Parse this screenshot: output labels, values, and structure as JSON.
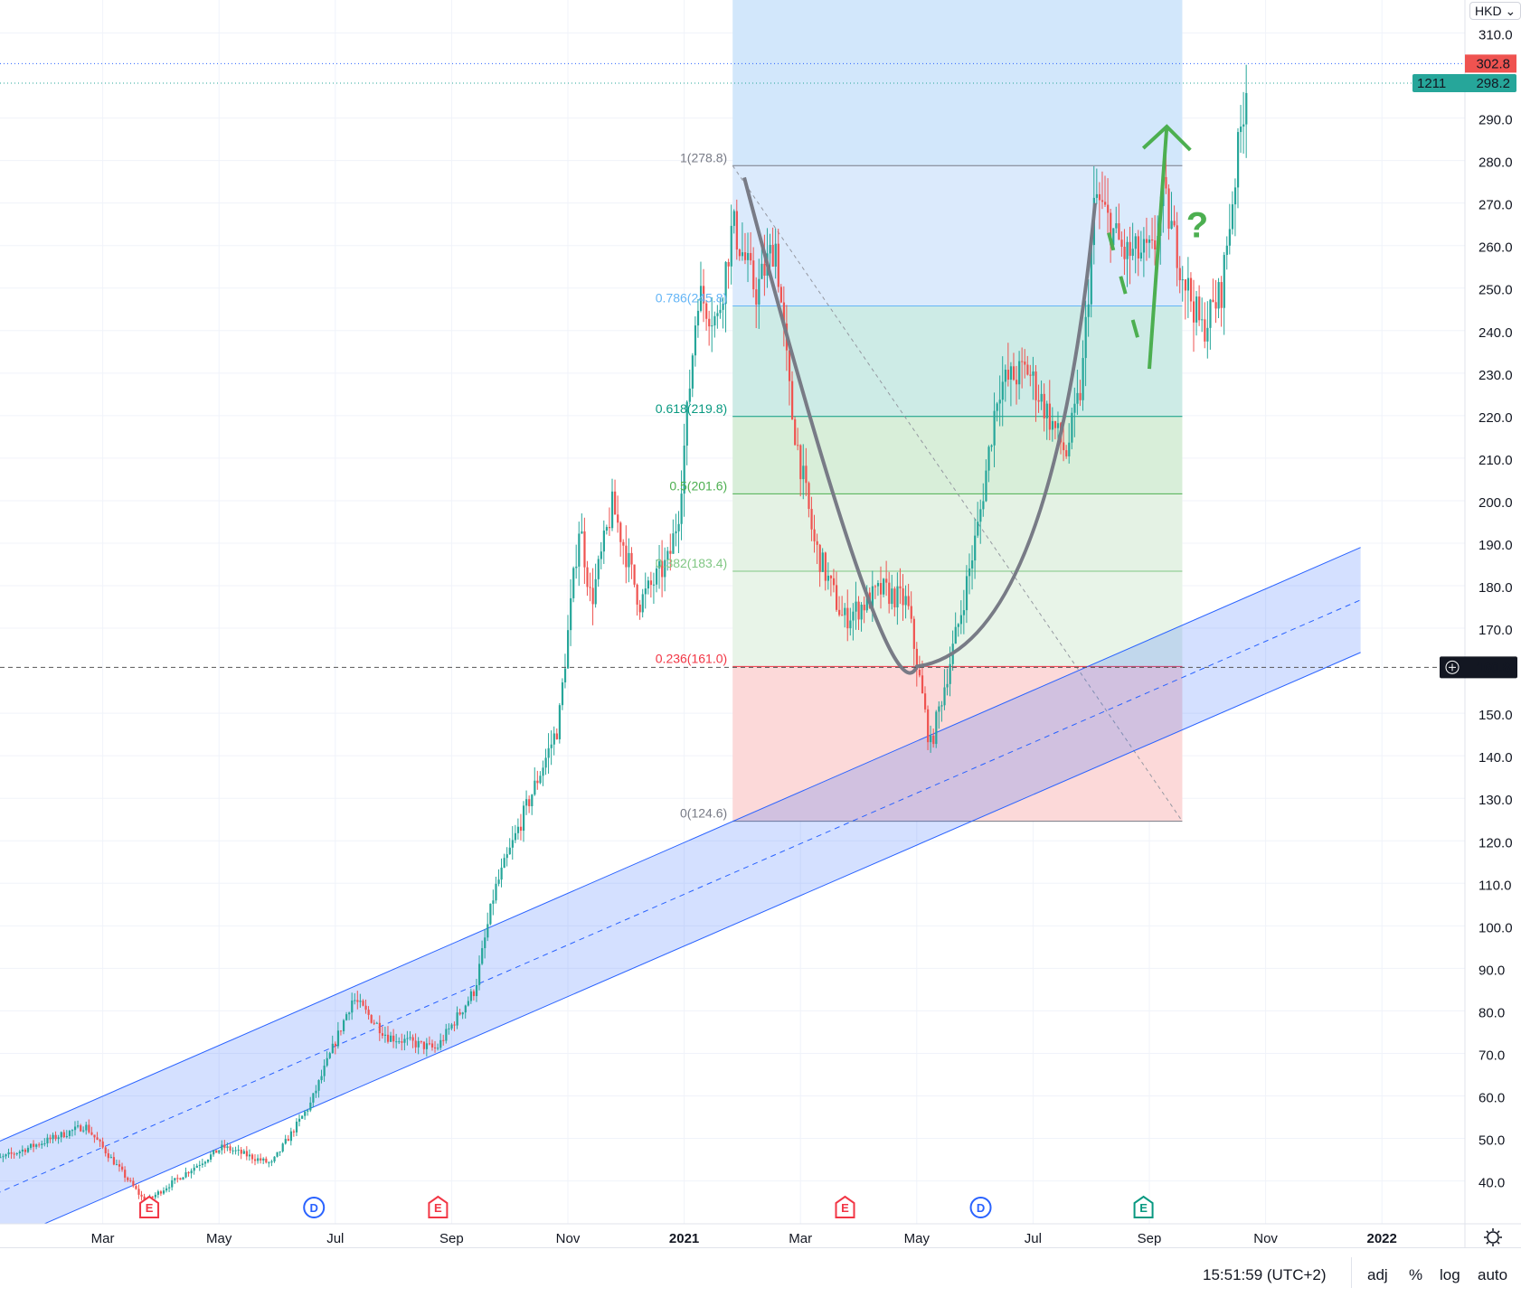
{
  "currency_button": "HKD ⌄",
  "bottom_bar": {
    "time": "15:51:59 (UTC+2)",
    "adj": "adj",
    "percent": "%",
    "log": "log",
    "auto": "auto"
  },
  "settings_icon": "gear-icon",
  "colors": {
    "up": "#26a69a",
    "down": "#ef5350",
    "channel": "#2962ff",
    "cup": "#787b86",
    "annotation": "#4caf50"
  },
  "chart_data": {
    "type": "candlestick",
    "ylim": [
      30,
      312
    ],
    "y_ticks": [
      "310.0",
      "290.0",
      "280.0",
      "270.0",
      "260.0",
      "250.0",
      "240.0",
      "230.0",
      "220.0",
      "210.0",
      "200.0",
      "190.0",
      "180.0",
      "170.0",
      "150.0",
      "140.0",
      "130.0",
      "120.0",
      "110.0",
      "100.0",
      "90.0",
      "80.0",
      "70.0",
      "60.0",
      "50.0",
      "40.0"
    ],
    "x_ticks": [
      {
        "label": "Mar",
        "date": "2020-03-01",
        "bold": false
      },
      {
        "label": "May",
        "date": "2020-05-01",
        "bold": false
      },
      {
        "label": "Jul",
        "date": "2020-07-01",
        "bold": false
      },
      {
        "label": "Sep",
        "date": "2020-09-01",
        "bold": false
      },
      {
        "label": "Nov",
        "date": "2020-11-01",
        "bold": false
      },
      {
        "label": "2021",
        "date": "2021-01-01",
        "bold": true
      },
      {
        "label": "Mar",
        "date": "2021-03-01",
        "bold": false
      },
      {
        "label": "May",
        "date": "2021-05-01",
        "bold": false
      },
      {
        "label": "Jul",
        "date": "2021-07-01",
        "bold": false
      },
      {
        "label": "Sep",
        "date": "2021-09-01",
        "bold": false
      },
      {
        "label": "Nov",
        "date": "2021-11-01",
        "bold": false
      },
      {
        "label": "2022",
        "date": "2022-01-01",
        "bold": true
      }
    ],
    "price_path": [
      [
        "2020-01-01",
        44
      ],
      [
        "2020-02-22",
        53
      ],
      [
        "2020-03-23",
        35
      ],
      [
        "2020-04-08",
        40
      ],
      [
        "2020-05-03",
        48
      ],
      [
        "2020-05-28",
        44
      ],
      [
        "2020-06-18",
        58
      ],
      [
        "2020-07-10",
        83
      ],
      [
        "2020-07-28",
        74
      ],
      [
        "2020-08-23",
        71
      ],
      [
        "2020-09-13",
        85
      ],
      [
        "2020-09-23",
        108
      ],
      [
        "2020-10-08",
        126
      ],
      [
        "2020-10-26",
        147
      ],
      [
        "2020-11-07",
        195
      ],
      [
        "2020-11-13",
        176
      ],
      [
        "2020-11-24",
        199
      ],
      [
        "2020-12-08",
        176
      ],
      [
        "2020-12-23",
        186
      ],
      [
        "2020-12-28",
        197
      ],
      [
        "2021-01-08",
        249
      ],
      [
        "2021-01-18",
        242
      ],
      [
        "2021-01-26",
        265
      ],
      [
        "2021-02-08",
        249
      ],
      [
        "2021-02-18",
        261
      ],
      [
        "2021-02-26",
        222
      ],
      [
        "2021-03-08",
        190
      ],
      [
        "2021-03-23",
        172
      ],
      [
        "2021-04-13",
        179
      ],
      [
        "2021-04-26",
        176
      ],
      [
        "2021-05-08",
        142
      ],
      [
        "2021-05-23",
        172
      ],
      [
        "2021-06-03",
        195
      ],
      [
        "2021-06-13",
        227
      ],
      [
        "2021-06-28",
        231
      ],
      [
        "2021-07-18",
        211
      ],
      [
        "2021-07-26",
        227
      ],
      [
        "2021-08-03",
        272
      ],
      [
        "2021-08-18",
        258
      ],
      [
        "2021-09-03",
        258
      ],
      [
        "2021-09-08",
        272
      ],
      [
        "2021-09-18",
        254
      ],
      [
        "2021-09-28",
        240
      ],
      [
        "2021-10-08",
        249
      ],
      [
        "2021-10-21",
        298.2
      ]
    ],
    "price_labels": {
      "high": "302.8",
      "last": "298.2",
      "countdown": "1211",
      "crosshair": "160.8"
    },
    "horizontal_lines": {
      "high": 302.8,
      "last": 298.2,
      "crosshair": 160.8
    },
    "fib": {
      "start": "2021-01-26",
      "end": "2021-09-18",
      "high": 278.8,
      "low": 124.6,
      "levels": [
        {
          "label": "1(278.8)",
          "value": 278.8,
          "color": "#787b86",
          "fill": "#e0e0e0"
        },
        {
          "label": "0.786(245.8)",
          "value": 245.8,
          "color": "#64b5f6",
          "fill": "#dbeafc"
        },
        {
          "label": "0.618(219.8)",
          "value": 219.8,
          "color": "#089981",
          "fill": "#cdebe6"
        },
        {
          "label": "0.5(201.6)",
          "value": 201.6,
          "color": "#4caf50",
          "fill": "#d8eed9"
        },
        {
          "label": "0.382(183.4)",
          "value": 183.4,
          "color": "#81c784",
          "fill": "#e4f2e4"
        },
        {
          "label": "0.236(161.0)",
          "value": 161.0,
          "color": "#f23645",
          "fill": "#e8f4e8"
        },
        {
          "label": "0(124.6)",
          "value": 124.6,
          "color": "#787b86",
          "fill": "#fcd9d9"
        }
      ],
      "extension_fill": "#d2e7fb"
    },
    "channel": {
      "start": "2020-01-01",
      "end": "2021-12-20",
      "upper": [
        48,
        189
      ],
      "lower": [
        24,
        164.3
      ]
    },
    "cup": [
      [
        "2021-02-02",
        276
      ],
      [
        "2021-05-01",
        161
      ],
      [
        "2021-08-03",
        270
      ]
    ],
    "arrow": [
      [
        "2021-09-01",
        231
      ],
      [
        "2021-09-10",
        288
      ]
    ],
    "dash_marks": [
      [
        "2021-08-10",
        263
      ],
      [
        "2021-08-27",
        235
      ]
    ],
    "question_mark": {
      "text": "?",
      "date": "2021-09-20",
      "price": 262
    },
    "events": [
      {
        "type": "E",
        "date": "2020-03-25",
        "color": "#f23645"
      },
      {
        "type": "D",
        "date": "2020-06-20",
        "color": "#2962ff"
      },
      {
        "type": "E",
        "date": "2020-08-24",
        "color": "#f23645"
      },
      {
        "type": "E",
        "date": "2021-03-24",
        "color": "#f23645"
      },
      {
        "type": "D",
        "date": "2021-06-04",
        "color": "#2962ff"
      },
      {
        "type": "E",
        "date": "2021-08-28",
        "color": "#089981"
      }
    ]
  }
}
